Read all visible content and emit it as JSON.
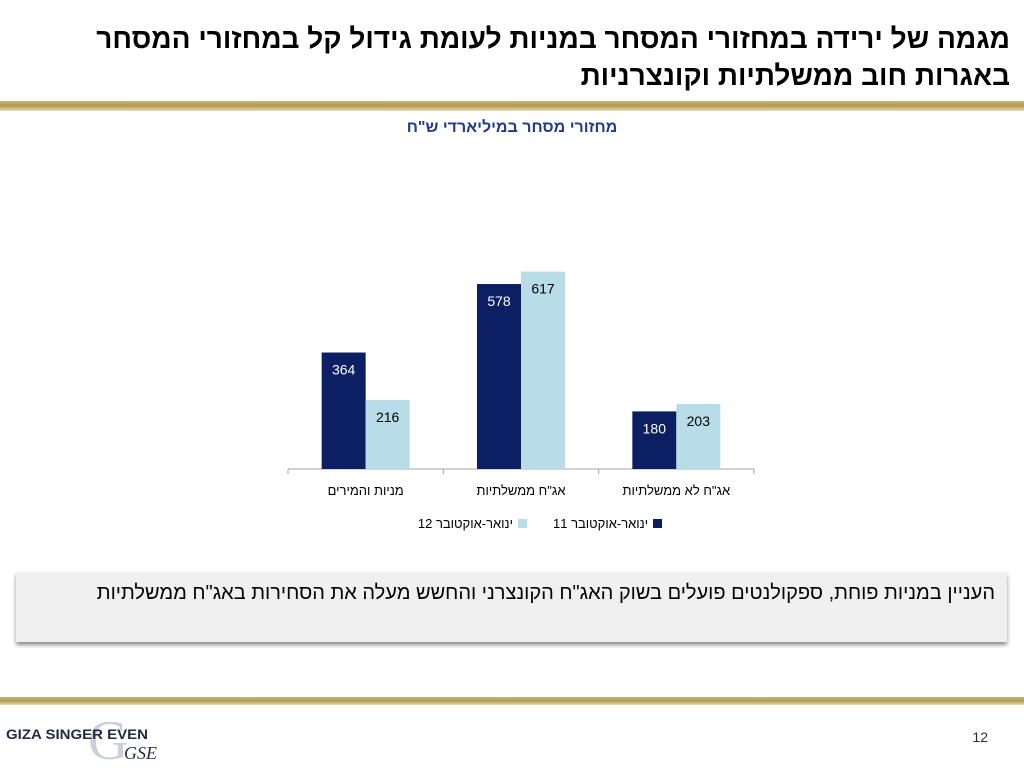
{
  "slide": {
    "title": "מגמה של ירידה במחזורי המסחר במניות לעומת גידול קל במחזורי המסחר באגרות חוב ממשלתיות וקונצרניות",
    "note": "העניין במניות פוחת, ספקולנטים פועלים בשוק האג\"ח הקונצרני והחשש מעלה את הסחירות באג\"ח ממשלתיות",
    "page_number": "12",
    "logo_text": "GIZA SINGER EVEN",
    "logo_mark": "GSE"
  },
  "colors": {
    "series1": "#0d1f63",
    "series2": "#b8dde8",
    "title_blue": "#1f3a8a",
    "gold": "#b09a52"
  },
  "chart_data": {
    "type": "bar",
    "title": "מחזורי מסחר במיליארדי ש\"ח",
    "categories": [
      "מניות והמירים",
      "אג\"ח ממשלתיות",
      "אג\"ח לא ממשלתיות"
    ],
    "series": [
      {
        "name": "ינואר-אוקטובר 11",
        "values": [
          364,
          578,
          180
        ]
      },
      {
        "name": "ינואר-אוקטובר 12",
        "values": [
          216,
          617,
          203
        ]
      }
    ],
    "xlabel": "",
    "ylabel": "",
    "ylim": [
      0,
      700
    ],
    "grid": false,
    "legend_position": "bottom"
  }
}
